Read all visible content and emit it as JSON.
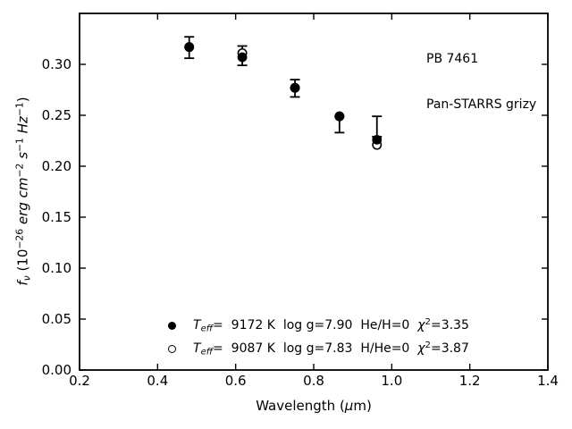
{
  "colors": {
    "foreground": "#000000",
    "background": "#ffffff"
  },
  "figure": {
    "annotation": {
      "line1": "PB 7461",
      "line2": "Pan-STARRS grizy"
    },
    "axes_labels": {
      "xlabel_segments": [
        {
          "t": "Wavelength (",
          "s": "n"
        },
        {
          "t": "μ",
          "s": "i"
        },
        {
          "t": "m)",
          "s": "n"
        }
      ],
      "ylabel_segments": [
        {
          "t": "f",
          "s": "i"
        },
        {
          "t": "ν",
          "s": "subi"
        },
        {
          "t": " (10",
          "s": "n"
        },
        {
          "t": "−26",
          "s": "sup"
        },
        {
          "t": " erg cm",
          "s": "i"
        },
        {
          "t": "−2",
          "s": "sup"
        },
        {
          "t": " s",
          "s": "i"
        },
        {
          "t": "−1",
          "s": "sup"
        },
        {
          "t": " Hz",
          "s": "i"
        },
        {
          "t": "−1",
          "s": "sup"
        },
        {
          "t": ")",
          "s": "n"
        }
      ]
    },
    "legend": {
      "rows": [
        {
          "marker": "filled-circle",
          "segments": [
            {
              "t": "T",
              "s": "i"
            },
            {
              "t": "eff",
              "s": "subi"
            },
            {
              "t": "=  9172 K  log g=7.90  He/H=0  ",
              "s": "n"
            },
            {
              "t": "χ",
              "s": "i"
            },
            {
              "t": "2",
              "s": "sup"
            },
            {
              "t": "=3.35",
              "s": "n"
            }
          ]
        },
        {
          "marker": "open-circle",
          "segments": [
            {
              "t": "T",
              "s": "i"
            },
            {
              "t": "eff",
              "s": "subi"
            },
            {
              "t": "=  9087 K  log g=7.83  H/He=0  ",
              "s": "n"
            },
            {
              "t": "χ",
              "s": "i"
            },
            {
              "t": "2",
              "s": "sup"
            },
            {
              "t": "=3.87",
              "s": "n"
            }
          ]
        }
      ]
    }
  },
  "chart_data": {
    "type": "scatter",
    "title": "",
    "xlabel": "Wavelength (μm)",
    "ylabel": "f_ν (10^−26 erg cm^−2 s^−1 Hz^−1)",
    "xlim": [
      0.2,
      1.4
    ],
    "ylim": [
      0.0,
      0.35
    ],
    "x_tick_values": [
      0.2,
      0.4,
      0.6,
      0.8,
      1.0,
      1.2,
      1.4
    ],
    "x_tick_labels": [
      "0.2",
      "0.4",
      "0.6",
      "0.8",
      "1.0",
      "1.2",
      "1.4"
    ],
    "y_tick_values": [
      0.0,
      0.05,
      0.1,
      0.15,
      0.2,
      0.25,
      0.3
    ],
    "y_tick_labels": [
      "0.00",
      "0.05",
      "0.10",
      "0.15",
      "0.20",
      "0.25",
      "0.30"
    ],
    "grid": false,
    "legend_position": "lower center",
    "annotations": [
      "PB 7461",
      "Pan-STARRS grizy"
    ],
    "bands": [
      "g",
      "r",
      "i",
      "z",
      "y"
    ],
    "x": [
      0.481,
      0.617,
      0.752,
      0.866,
      0.962
    ],
    "series": [
      {
        "name": "Teff= 9172 K  log g=7.90  He/H=0  chi2=3.35",
        "marker": "filled-circle",
        "values": [
          0.317,
          0.307,
          0.277,
          0.249,
          0.226
        ]
      },
      {
        "name": "Teff= 9087 K  log g=7.83  H/He=0  chi2=3.87",
        "marker": "open-circle",
        "values": [
          0.317,
          0.311,
          0.277,
          0.249,
          0.221
        ]
      }
    ],
    "error_bars": {
      "upper": [
        0.327,
        0.318,
        0.285,
        0.249,
        0.249
      ],
      "lower": [
        0.306,
        0.299,
        0.268,
        0.233,
        0.229
      ]
    }
  }
}
